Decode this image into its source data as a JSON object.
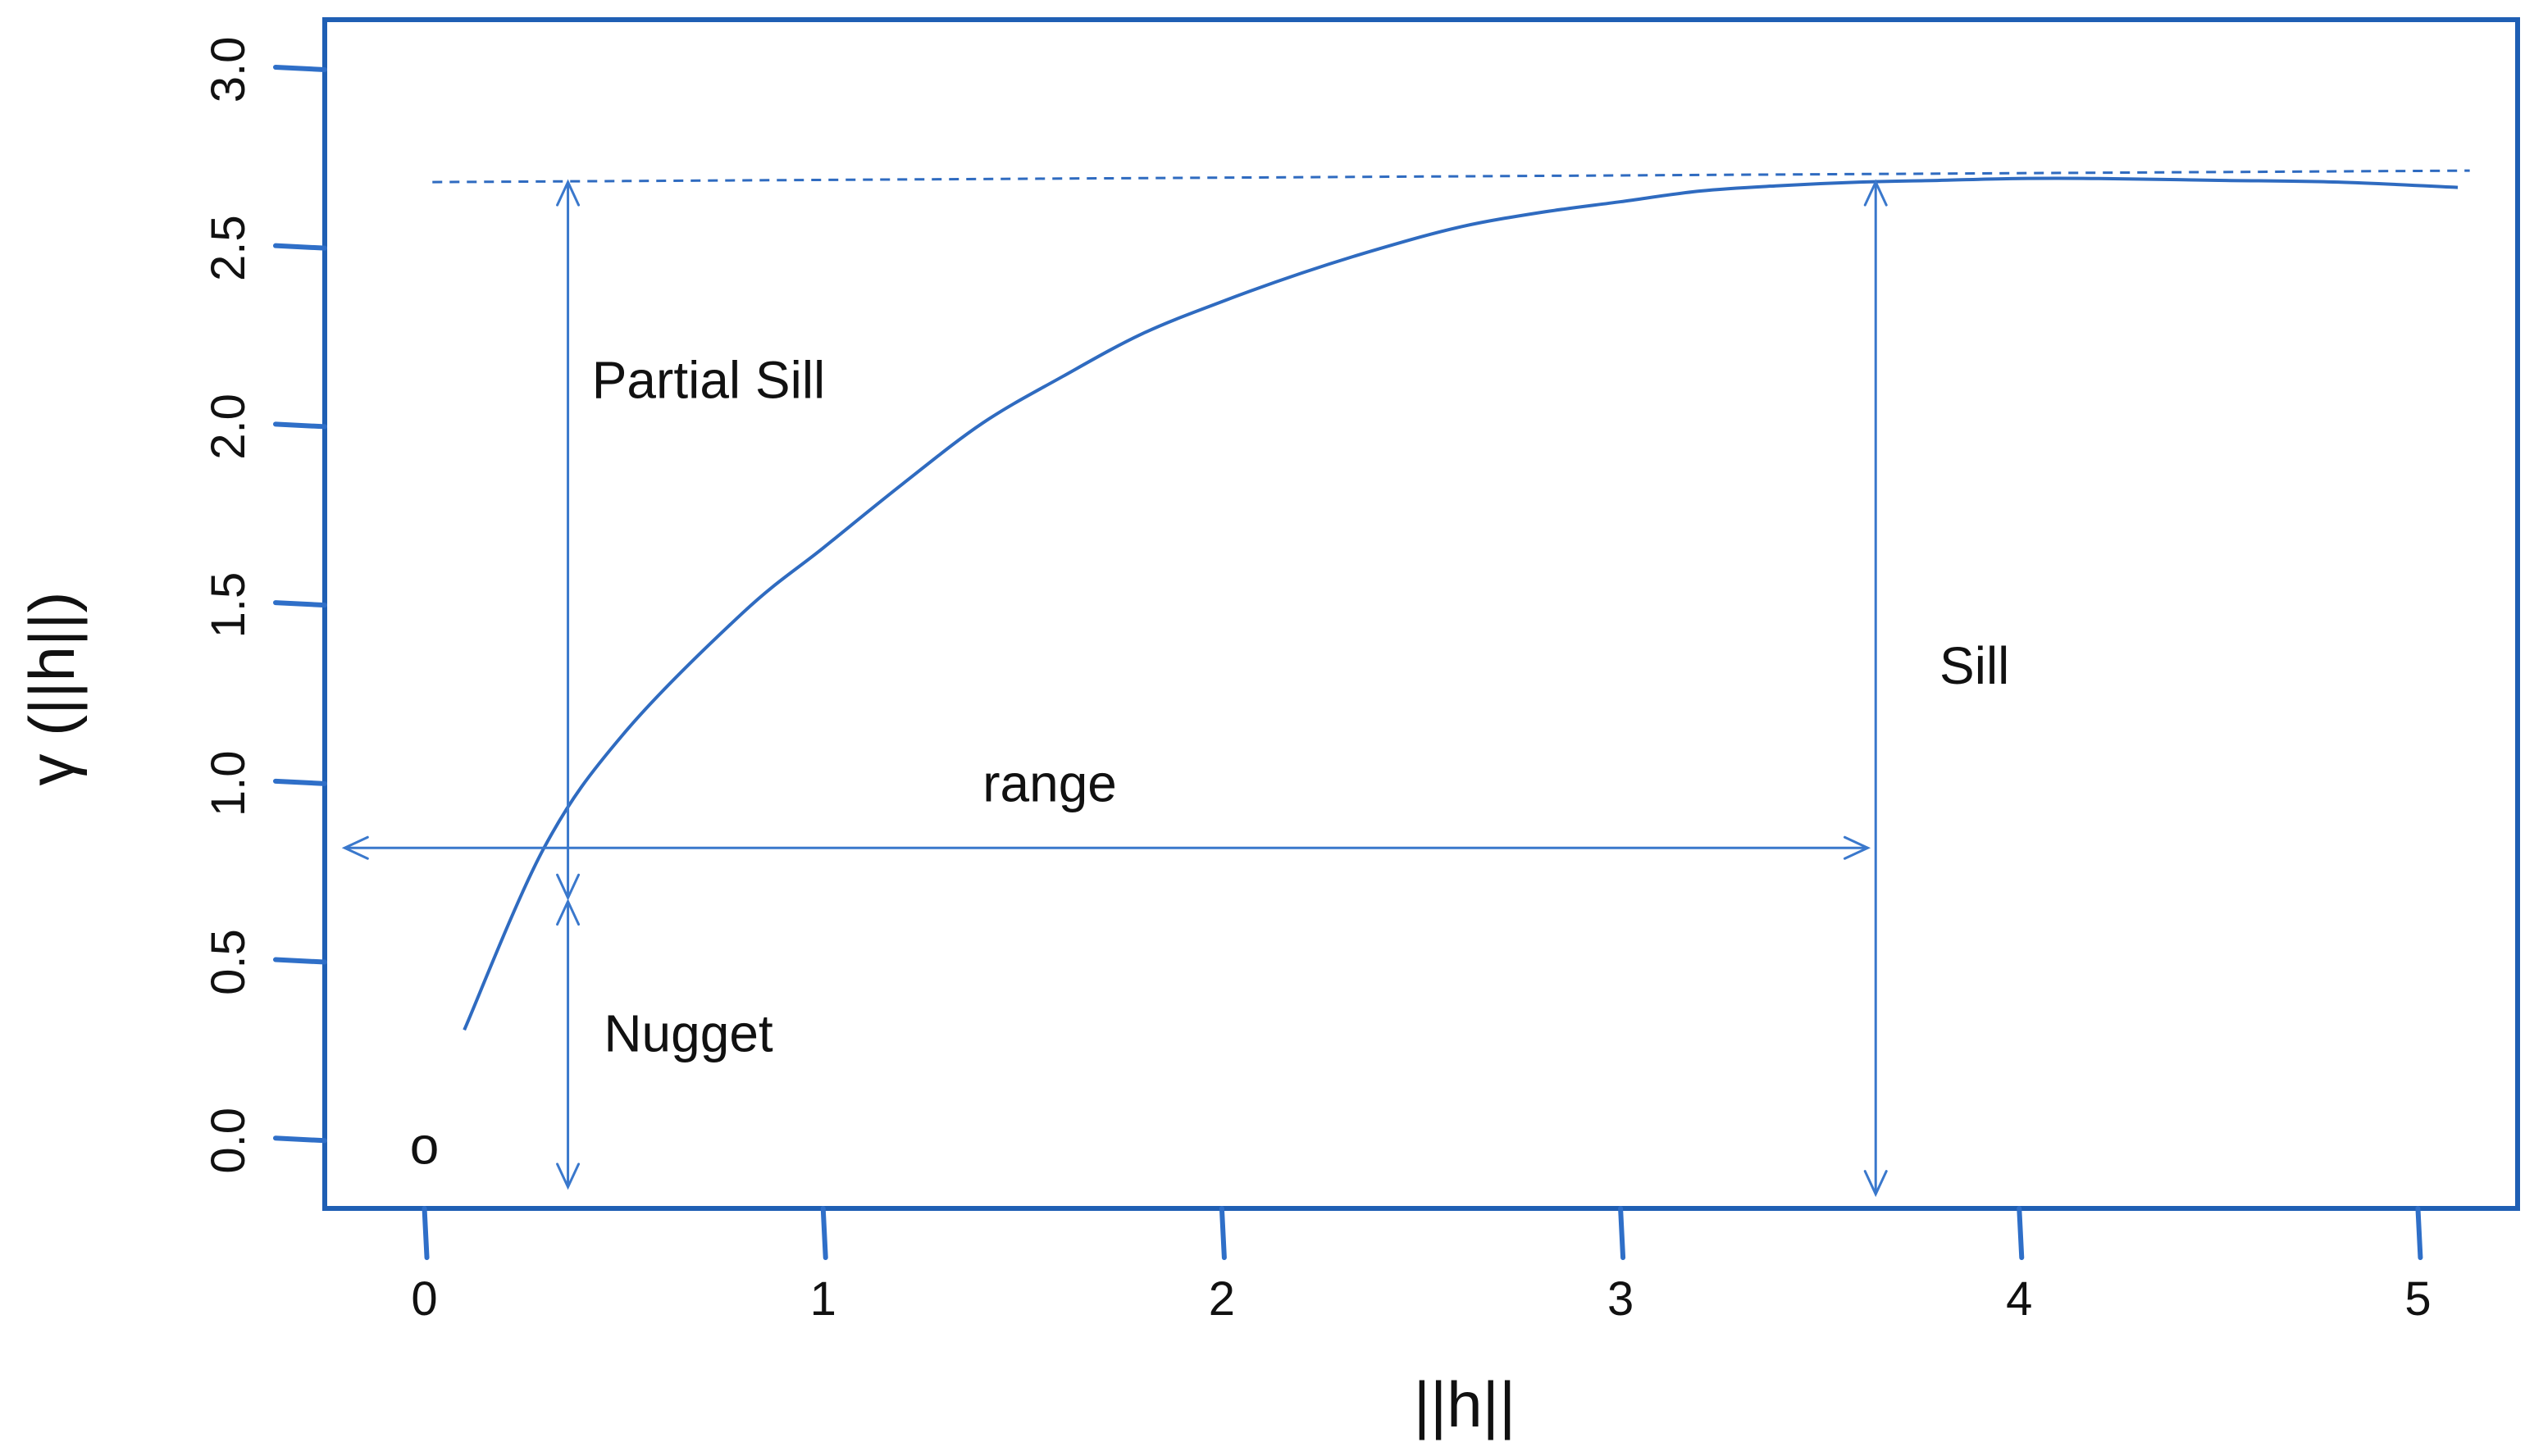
{
  "chart_data": {
    "type": "line",
    "title": "",
    "xlabel": "||h||",
    "ylabel": "γ (||h||)",
    "xlim": [
      -0.25,
      5.25
    ],
    "ylim": [
      -0.19,
      3.14
    ],
    "x_ticks": [
      {
        "value": 0,
        "label": "0"
      },
      {
        "value": 1,
        "label": "1"
      },
      {
        "value": 2,
        "label": "2"
      },
      {
        "value": 3,
        "label": "3"
      },
      {
        "value": 4,
        "label": "4"
      },
      {
        "value": 5,
        "label": "5"
      }
    ],
    "y_ticks": [
      {
        "value": 0.0,
        "label": "0.0"
      },
      {
        "value": 0.5,
        "label": "0.5"
      },
      {
        "value": 1.0,
        "label": "1.0"
      },
      {
        "value": 1.5,
        "label": "1.5"
      },
      {
        "value": 2.0,
        "label": "2.0"
      },
      {
        "value": 2.5,
        "label": "2.5"
      },
      {
        "value": 3.0,
        "label": "3.0"
      }
    ],
    "grid": false,
    "series": [
      {
        "x": [
          0.1,
          0.3,
          0.5,
          0.8,
          1.0,
          1.2,
          1.4,
          1.6,
          1.8,
          2.0,
          2.2,
          2.4,
          2.6,
          2.8,
          3.0,
          3.2,
          3.4,
          3.6,
          3.8,
          4.0,
          4.2,
          4.5,
          4.8,
          5.1
        ],
        "y": [
          0.31,
          0.82,
          1.14,
          1.48,
          1.66,
          1.84,
          2.01,
          2.14,
          2.26,
          2.35,
          2.43,
          2.5,
          2.56,
          2.6,
          2.63,
          2.66,
          2.675,
          2.685,
          2.69,
          2.695,
          2.695,
          2.69,
          2.685,
          2.67
        ]
      }
    ],
    "sill_level": 2.685,
    "points": [
      {
        "x": 0.0,
        "y": 0.0,
        "label": "o"
      }
    ],
    "annotations": [
      {
        "text": "Partial Sill",
        "x": 0.42,
        "y": 2.08
      },
      {
        "text": "Nugget",
        "x": 0.45,
        "y": 0.25
      },
      {
        "text": "range",
        "x": 1.4,
        "y": 0.95
      },
      {
        "text": "Sill",
        "x": 3.8,
        "y": 1.28
      }
    ],
    "arrows": [
      {
        "name": "partial-sill-arrow",
        "x1": 0.36,
        "y1": 2.685,
        "x2": 0.36,
        "y2": 0.68
      },
      {
        "name": "nugget-arrow",
        "x1": 0.36,
        "y1": 0.67,
        "x2": 0.36,
        "y2": -0.13
      },
      {
        "name": "range-arrow",
        "x1": -0.2,
        "y1": 0.82,
        "x2": 3.62,
        "y2": 0.82
      },
      {
        "name": "sill-arrow",
        "x1": 3.64,
        "y1": 2.685,
        "x2": 3.64,
        "y2": -0.15
      }
    ]
  }
}
